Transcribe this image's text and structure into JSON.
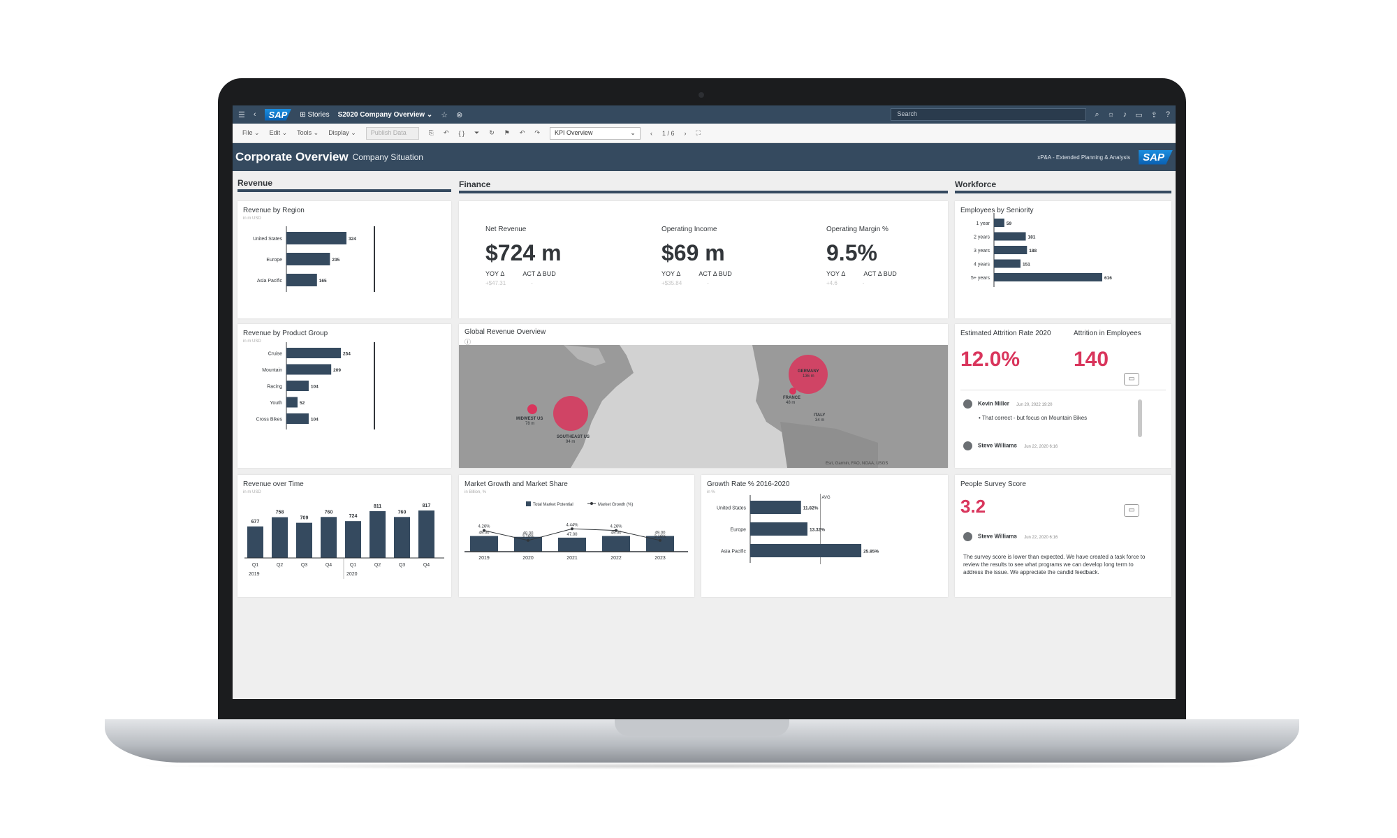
{
  "shell": {
    "brand": "SAP",
    "stories": "Stories",
    "story_title": "S2020 Company Overview",
    "search_placeholder": "Search"
  },
  "toolbar": {
    "file": "File",
    "edit": "Edit",
    "tools": "Tools",
    "display": "Display",
    "publish": "Publish Data",
    "page_select": "KPI Overview",
    "pager": "1 / 6"
  },
  "header": {
    "title": "Corporate Overview",
    "subtitle": "Company Situation",
    "app": "xP&A - Extended Planning & Analysis",
    "brand": "SAP"
  },
  "sections": {
    "revenue": "Revenue",
    "finance": "Finance",
    "workforce": "Workforce"
  },
  "rev_region": {
    "title": "Revenue by Region",
    "unit": "in m USD",
    "chart_data": {
      "type": "bar",
      "categories": [
        "United States",
        "Europe",
        "Asia Pacific"
      ],
      "values": [
        324,
        235,
        165
      ]
    }
  },
  "rev_product": {
    "title": "Revenue by Product Group",
    "unit": "in m USD",
    "chart_data": {
      "type": "bar",
      "categories": [
        "Cruise",
        "Mountain",
        "Racing",
        "Youth",
        "Cross Bikes"
      ],
      "values": [
        254,
        209,
        104,
        52,
        104
      ]
    }
  },
  "rev_time": {
    "title": "Revenue over Time",
    "unit": "in m USD",
    "chart_data": {
      "type": "bar",
      "categories": [
        "Q1",
        "Q2",
        "Q3",
        "Q4",
        "Q1",
        "Q2",
        "Q3",
        "Q4"
      ],
      "years": [
        "2019",
        "2020"
      ],
      "values": [
        677,
        758,
        709,
        760,
        724,
        811,
        760,
        817
      ]
    }
  },
  "finance": {
    "net_revenue": {
      "label": "Net Revenue",
      "value": "$724 m",
      "yoy": "YOY Δ",
      "act": "ACT Δ BUD",
      "yoy_val": "+$47.31",
      "act_val": "-"
    },
    "op_income": {
      "label": "Operating Income",
      "value": "$69 m",
      "yoy": "YOY Δ",
      "act": "ACT Δ BUD",
      "yoy_val": "+$35.84",
      "act_val": "-"
    },
    "op_margin": {
      "label": "Operating Margin %",
      "value": "9.5%",
      "yoy": "YOY Δ",
      "act": "ACT Δ BUD",
      "yoy_val": "+4.6",
      "act_val": "-"
    }
  },
  "map": {
    "title": "Global Revenue Overview",
    "points": [
      {
        "name": "MIDWEST US",
        "value": "78 m"
      },
      {
        "name": "SOUTHEAST US",
        "value": "94 m"
      },
      {
        "name": "GERMANY",
        "value": "136 m"
      },
      {
        "name": "FRANCE",
        "value": "48 m"
      },
      {
        "name": "ITALY",
        "value": "34 m"
      }
    ],
    "attribution": "Esri, Garmin, FAO, NOAA, USGS"
  },
  "market": {
    "title": "Market Growth and Market Share",
    "unit": "in Billion, %",
    "legend_bar": "Total Market Potential",
    "legend_line": "Market Growth (%)",
    "chart_data": {
      "type": "bar",
      "categories": [
        "2019",
        "2020",
        "2021",
        "2022",
        "2023"
      ],
      "series": [
        {
          "name": "Total Market Potential",
          "values": [
            49.0,
            48.0,
            47.0,
            49.0,
            49.0
          ]
        },
        {
          "name": "Market Growth (%)",
          "values": [
            4.26,
            3.16,
            4.44,
            4.26,
            3.16
          ]
        }
      ],
      "bar_labels": [
        "49.00",
        "48.00",
        "47.00",
        "49.00",
        "49.00"
      ],
      "line_labels": [
        "4.26%",
        "3.16%",
        "4.44%",
        "4.26%",
        "3.16%"
      ]
    }
  },
  "growth": {
    "title": "Growth Rate % 2016-2020",
    "unit": "in %",
    "avg_label": "AVG",
    "chart_data": {
      "type": "bar",
      "categories": [
        "United States",
        "Europe",
        "Asia Pacific"
      ],
      "values": [
        11.82,
        13.32,
        25.85
      ],
      "labels": [
        "11.82%",
        "13.32%",
        "25.85%"
      ],
      "avg": 16.33
    }
  },
  "seniority": {
    "title": "Employees by Seniority",
    "chart_data": {
      "type": "bar",
      "categories": [
        "1 year",
        "2 years",
        "3 years",
        "4 years",
        "5+ years"
      ],
      "values": [
        59,
        181,
        188,
        151,
        616
      ]
    }
  },
  "attrition": {
    "rate_label": "Estimated Attrition Rate 2020",
    "rate_value": "12.0%",
    "emp_label": "Attrition in Employees",
    "emp_value": "140",
    "c1_name": "Kevin Miller",
    "c1_time": "Jun 20, 2022 19:20",
    "c1_text": "That correct - but focus on Mountain Bikes",
    "c2_name": "Steve Williams",
    "c2_time": "Jun 22, 2020 6:16"
  },
  "survey": {
    "title": "People Survey Score",
    "value": "3.2",
    "c_name": "Steve Williams",
    "c_time": "Jun 22, 2020 6:16",
    "c_text": "The survey score is lower than expected. We have created a task force to review the results to see what programs we can develop long term to address the issue. We appreciate the candid feedback."
  },
  "colors": {
    "bar": "#354a5f",
    "accent": "#d9355c",
    "shell": "#354a5f"
  }
}
